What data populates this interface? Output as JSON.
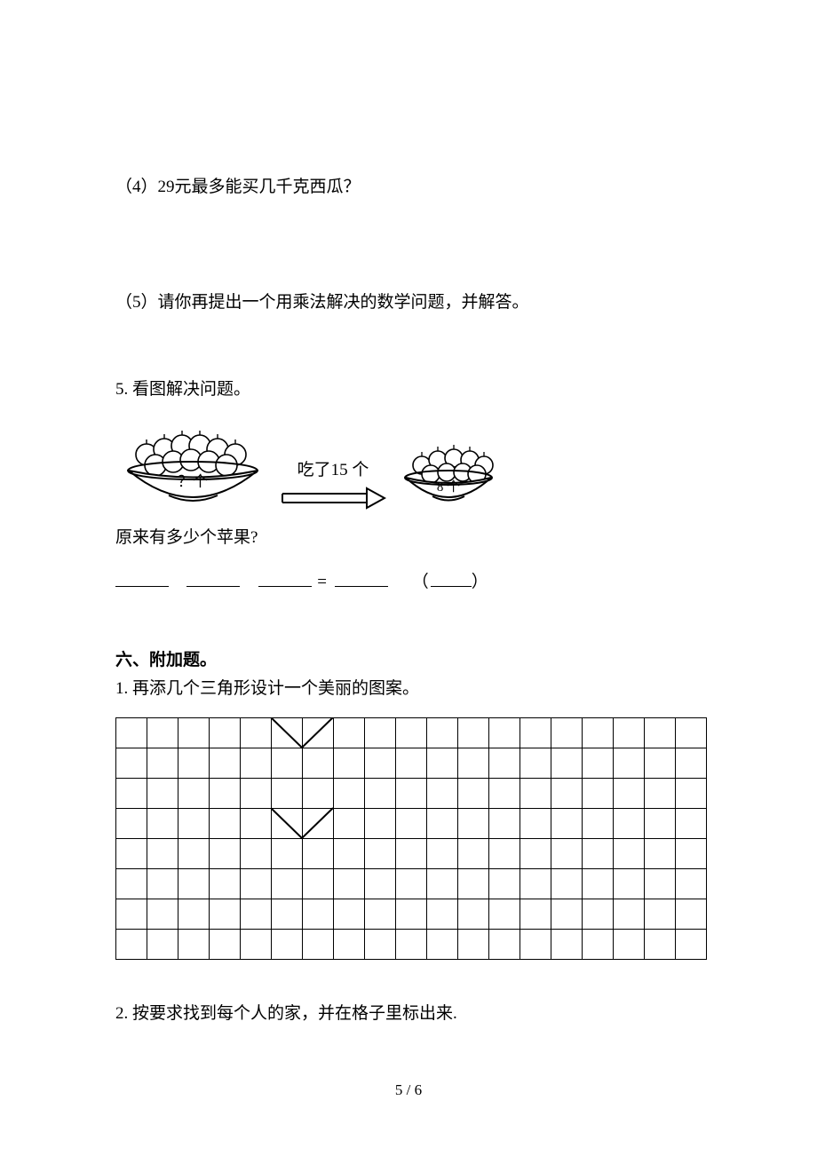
{
  "q4": "（4）29元最多能买几千克西瓜？",
  "q5": "（5）请你再提出一个用乘法解决的数学问题，并解答。",
  "p5_title": "5.  看图解决问题。",
  "arrow_label": "吃了15 个",
  "bowl1_label": "？个",
  "bowl2_label": "8 个",
  "under_text": "原来有多少个苹果?",
  "eq_text": " = ",
  "paren_open": "（",
  "paren_close": "）",
  "section6_title": "六、附加题。",
  "p6_1": "1.  再添几个三角形设计一个美丽的图案。",
  "p6_2": "2.  按要求找到每个人的家，并在格子里标出来.",
  "page_number": "5 / 6",
  "grid": {
    "rows": 8,
    "cols": 19
  },
  "triangles": {
    "down1": {
      "row": 0,
      "colStart": 5,
      "span": 2
    },
    "down2": {
      "row": 3,
      "colStart": 5,
      "span": 2
    }
  },
  "colors": {
    "text": "#000000",
    "background": "#ffffff",
    "border": "#000000"
  }
}
